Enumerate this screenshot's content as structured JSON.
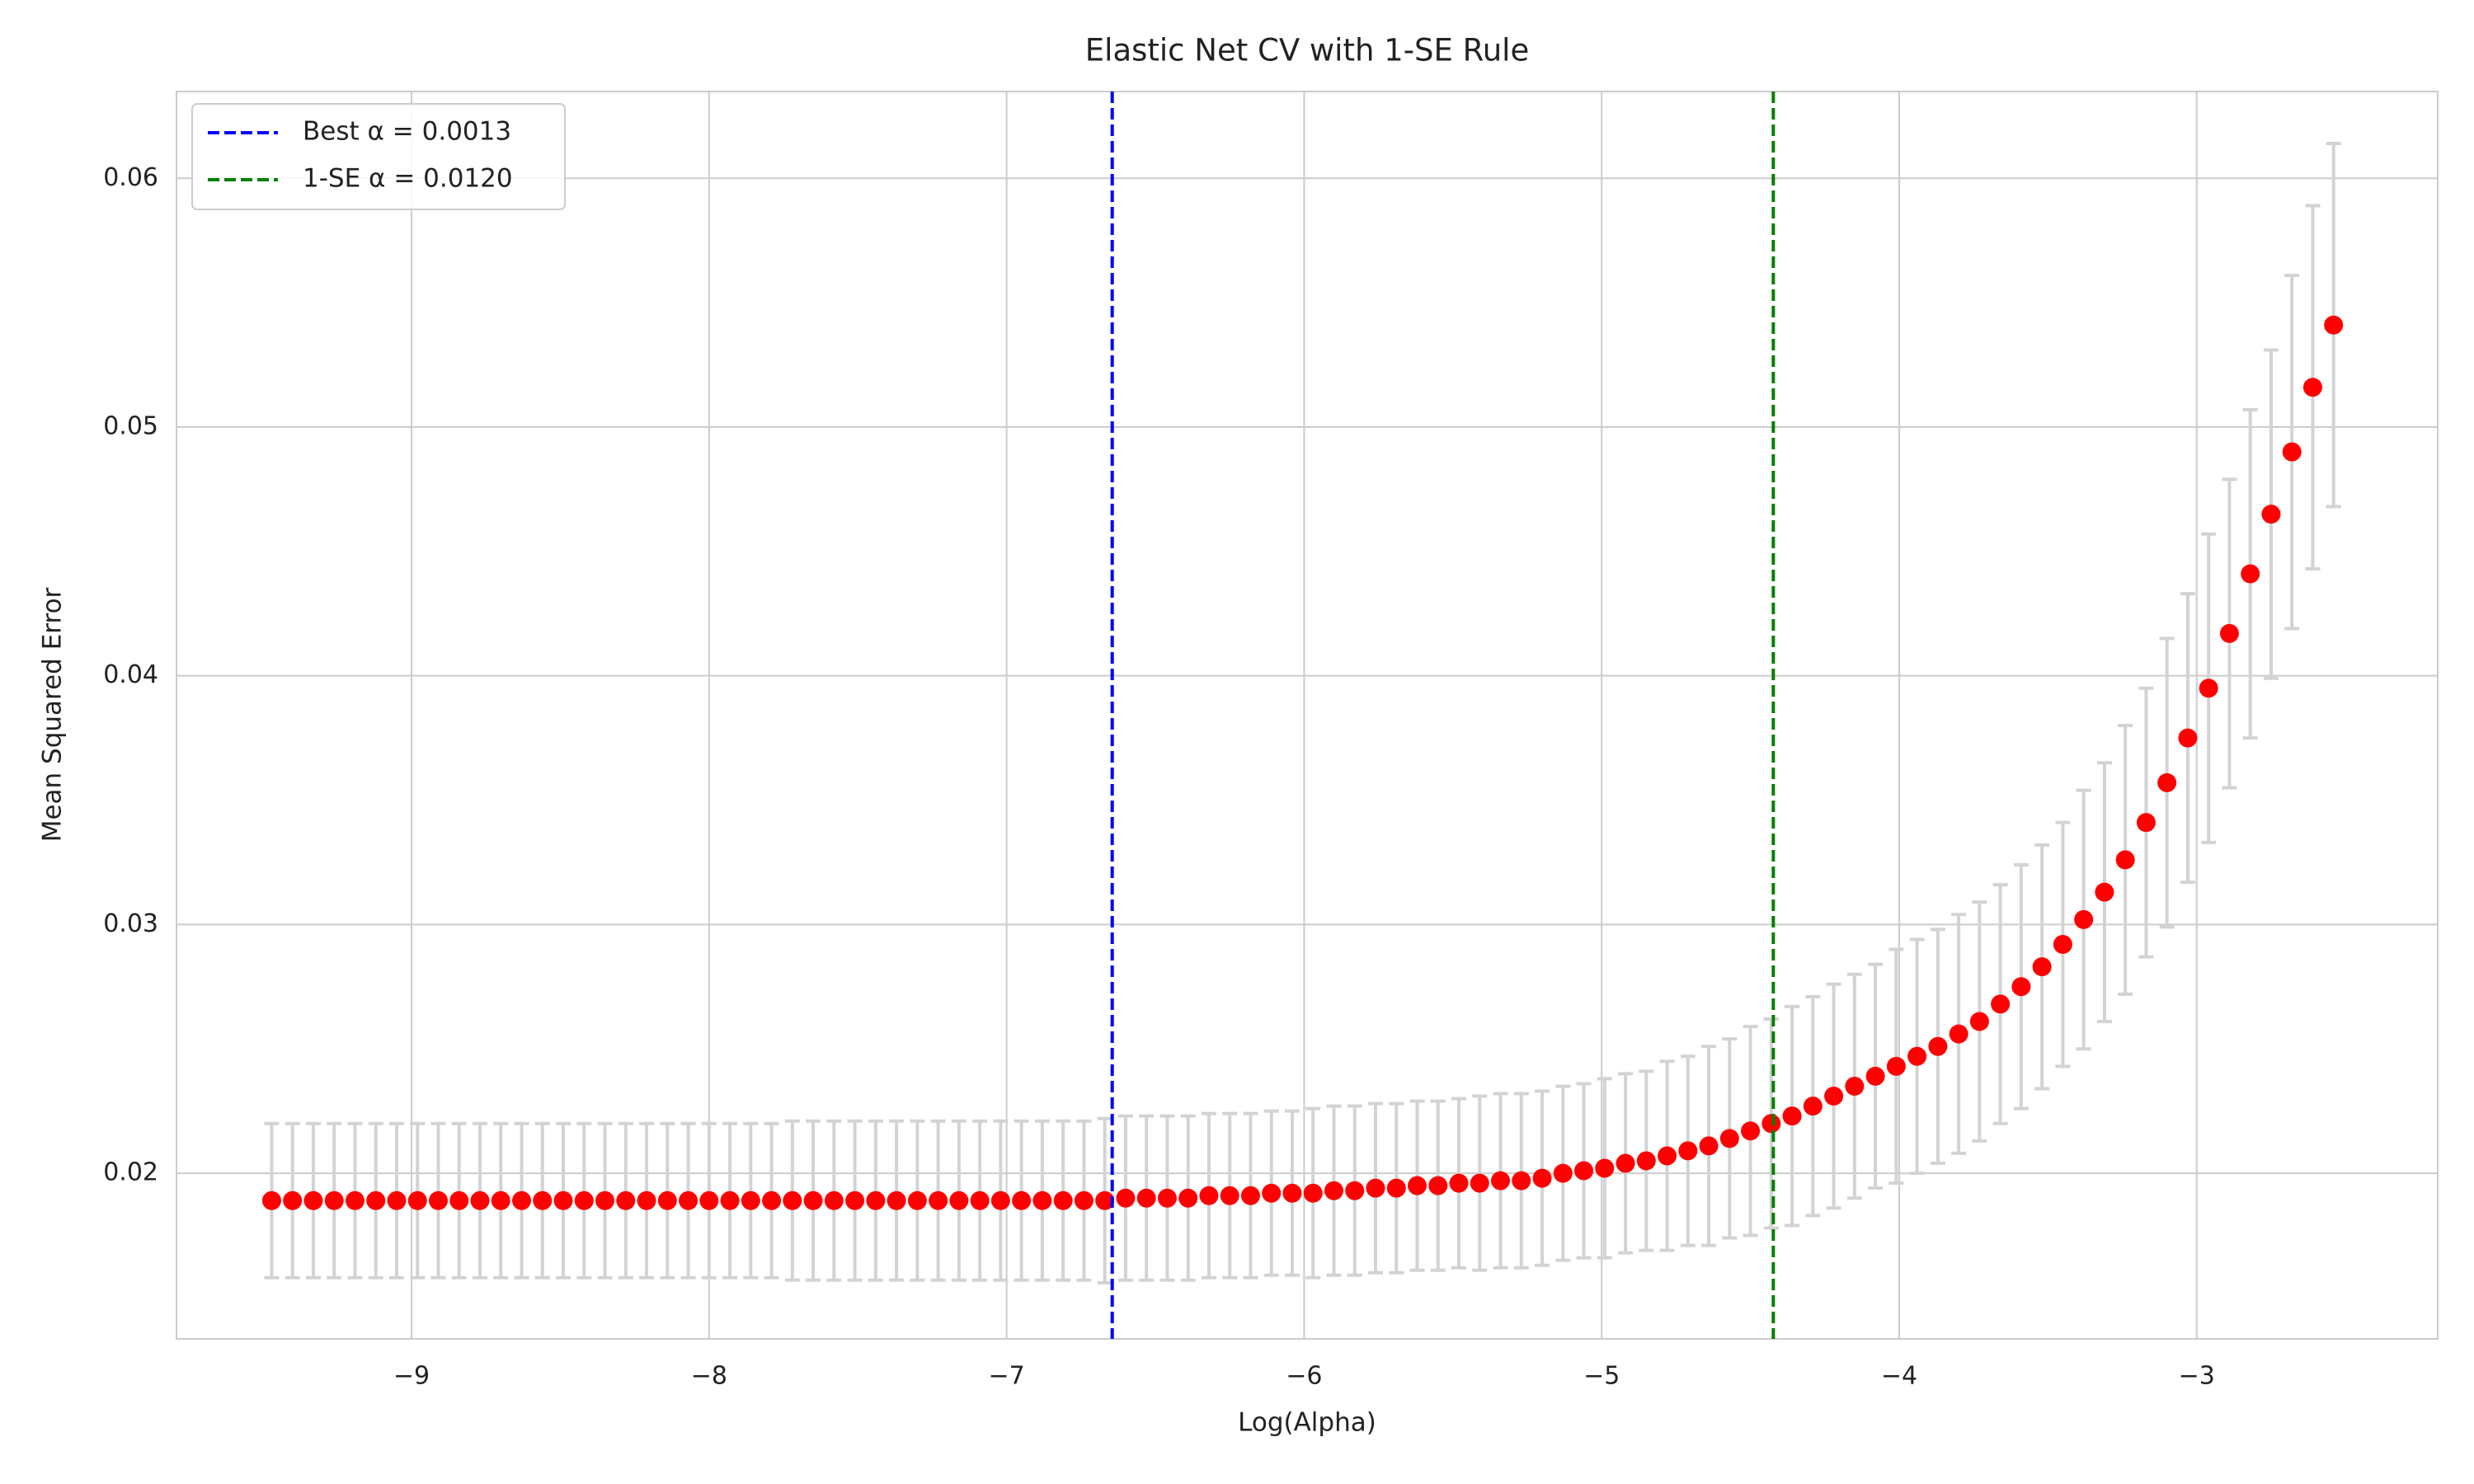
{
  "chart_data": {
    "type": "errorbar",
    "title": "Elastic Net CV with 1-SE Rule",
    "xlabel": "Log(Alpha)",
    "ylabel": "Mean Squared Error",
    "x": [
      -9.47,
      -9.4,
      -9.33,
      -9.26,
      -9.19,
      -9.12,
      -9.05,
      -8.98,
      -8.91,
      -8.84,
      -8.77,
      -8.7,
      -8.63,
      -8.56,
      -8.49,
      -8.42,
      -8.35,
      -8.28,
      -8.21,
      -8.14,
      -8.07,
      -8.0,
      -7.93,
      -7.86,
      -7.79,
      -7.72,
      -7.65,
      -7.58,
      -7.51,
      -7.44,
      -7.37,
      -7.3,
      -7.23,
      -7.16,
      -7.09,
      -7.02,
      -6.95,
      -6.88,
      -6.81,
      -6.74,
      -6.67,
      -6.6,
      -6.53,
      -6.46,
      -6.39,
      -6.32,
      -6.25,
      -6.18,
      -6.11,
      -6.04,
      -5.97,
      -5.9,
      -5.83,
      -5.76,
      -5.69,
      -5.62,
      -5.55,
      -5.48,
      -5.41,
      -5.34,
      -5.27,
      -5.2,
      -5.13,
      -5.06,
      -4.99,
      -4.92,
      -4.85,
      -4.78,
      -4.71,
      -4.64,
      -4.57,
      -4.5,
      -4.43,
      -4.36,
      -4.29,
      -4.22,
      -4.15,
      -4.08,
      -4.01,
      -3.94,
      -3.87,
      -3.8,
      -3.73,
      -3.66,
      -3.59,
      -3.52,
      -3.45,
      -3.38,
      -3.31,
      -3.24,
      -3.17,
      -3.1,
      -3.03,
      -2.96,
      -2.89,
      -2.82,
      -2.75,
      -2.68,
      -2.61,
      -2.54
    ],
    "values": [
      0.0189,
      0.0189,
      0.0189,
      0.0189,
      0.0189,
      0.0189,
      0.0189,
      0.0189,
      0.0189,
      0.0189,
      0.0189,
      0.0189,
      0.0189,
      0.0189,
      0.0189,
      0.0189,
      0.0189,
      0.0189,
      0.0189,
      0.0189,
      0.0189,
      0.0189,
      0.0189,
      0.0189,
      0.0189,
      0.0189,
      0.0189,
      0.0189,
      0.0189,
      0.0189,
      0.0189,
      0.0189,
      0.0189,
      0.0189,
      0.0189,
      0.0189,
      0.0189,
      0.0189,
      0.0189,
      0.0189,
      0.0189,
      0.019,
      0.019,
      0.019,
      0.019,
      0.0191,
      0.0191,
      0.0191,
      0.0192,
      0.0192,
      0.0192,
      0.0193,
      0.0193,
      0.0194,
      0.0194,
      0.0195,
      0.0195,
      0.0196,
      0.0196,
      0.0197,
      0.0197,
      0.0198,
      0.02,
      0.0201,
      0.0202,
      0.0204,
      0.0205,
      0.0207,
      0.0209,
      0.0211,
      0.0214,
      0.0217,
      0.022,
      0.0223,
      0.0227,
      0.0231,
      0.0235,
      0.0239,
      0.0243,
      0.0247,
      0.0251,
      0.0256,
      0.0261,
      0.0268,
      0.0275,
      0.0283,
      0.0292,
      0.0302,
      0.0313,
      0.0326,
      0.0341,
      0.0357,
      0.0375,
      0.0395,
      0.0417,
      0.0441,
      0.0465,
      0.049,
      0.0516,
      0.0541
    ],
    "errors": [
      0.0031,
      0.0031,
      0.0031,
      0.0031,
      0.0031,
      0.0031,
      0.0031,
      0.0031,
      0.0031,
      0.0031,
      0.0031,
      0.0031,
      0.0031,
      0.0031,
      0.0031,
      0.0031,
      0.0031,
      0.0031,
      0.0031,
      0.0031,
      0.0031,
      0.0031,
      0.0031,
      0.0031,
      0.0031,
      0.0032,
      0.0032,
      0.0032,
      0.0032,
      0.0032,
      0.0032,
      0.0032,
      0.0032,
      0.0032,
      0.0032,
      0.0032,
      0.0032,
      0.0032,
      0.0032,
      0.0032,
      0.0033,
      0.0033,
      0.0033,
      0.0033,
      0.0033,
      0.0033,
      0.0033,
      0.0033,
      0.0033,
      0.0033,
      0.0034,
      0.0034,
      0.0034,
      0.0034,
      0.0034,
      0.0034,
      0.0034,
      0.0034,
      0.0035,
      0.0035,
      0.0035,
      0.0035,
      0.0035,
      0.0035,
      0.0036,
      0.0036,
      0.0036,
      0.0038,
      0.0038,
      0.004,
      0.004,
      0.0042,
      0.0042,
      0.0044,
      0.0044,
      0.0045,
      0.0045,
      0.0045,
      0.0047,
      0.0047,
      0.0047,
      0.0048,
      0.0048,
      0.0048,
      0.0049,
      0.0049,
      0.0049,
      0.0052,
      0.0052,
      0.0054,
      0.0054,
      0.0058,
      0.0058,
      0.0062,
      0.0062,
      0.0066,
      0.0066,
      0.0071,
      0.0073,
      0.0073
    ],
    "color": "#ff0000",
    "error_color": "#d3d3d3",
    "vlines": [
      {
        "x": -6.645,
        "label": "Best α = 0.0013",
        "color": "#0000ff"
      },
      {
        "x": -4.423,
        "label": "1-SE α = 0.0120",
        "color": "#008000"
      }
    ],
    "xlim": [
      -9.79,
      -2.19
    ],
    "ylim": [
      0.01334,
      0.06349
    ],
    "xticks": [
      {
        "value": -9,
        "label": "−9"
      },
      {
        "value": -8,
        "label": "−8"
      },
      {
        "value": -7,
        "label": "−7"
      },
      {
        "value": -6,
        "label": "−6"
      },
      {
        "value": -5,
        "label": "−5"
      },
      {
        "value": -4,
        "label": "−4"
      },
      {
        "value": -3,
        "label": "−3"
      }
    ],
    "yticks": [
      0.02,
      0.03,
      0.04,
      0.05,
      0.06
    ],
    "grid": true,
    "legend": "upper left"
  }
}
